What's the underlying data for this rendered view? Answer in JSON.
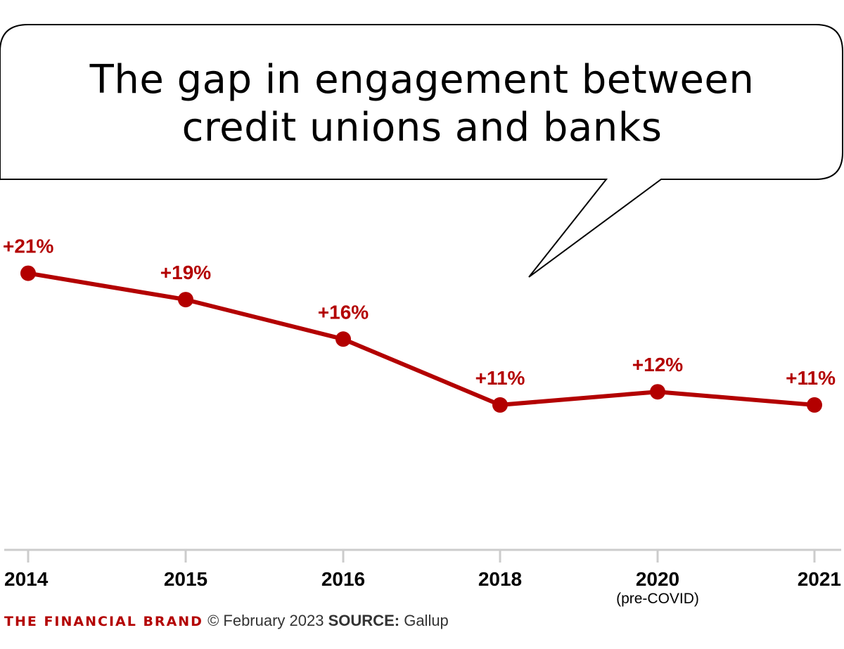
{
  "title": {
    "line1": "The gap in engagement between",
    "line2": "credit unions and banks"
  },
  "chart_data": {
    "type": "line",
    "categories": [
      "2014",
      "2015",
      "2016",
      "2018",
      "2020",
      "2021"
    ],
    "category_sublabels": [
      "",
      "",
      "",
      "",
      "(pre-COVID)",
      ""
    ],
    "series": [
      {
        "values": [
          21,
          19,
          16,
          11,
          12,
          11
        ],
        "labels": [
          "+21%",
          "+19%",
          "+16%",
          "+11%",
          "+12%",
          "+11%"
        ],
        "color": "#b30000"
      }
    ],
    "title": "The gap in engagement between credit unions and banks",
    "xlabel": "",
    "ylabel": "",
    "ylim": [
      0,
      30
    ],
    "grid": false,
    "legend": "none"
  },
  "footer": {
    "brand": "THE FINANCIAL BRAND",
    "date": "© February 2023",
    "source_label": "SOURCE:",
    "source": "Gallup"
  },
  "colors": {
    "accent": "#b30000",
    "axis": "#cccccc",
    "text": "#000000"
  }
}
